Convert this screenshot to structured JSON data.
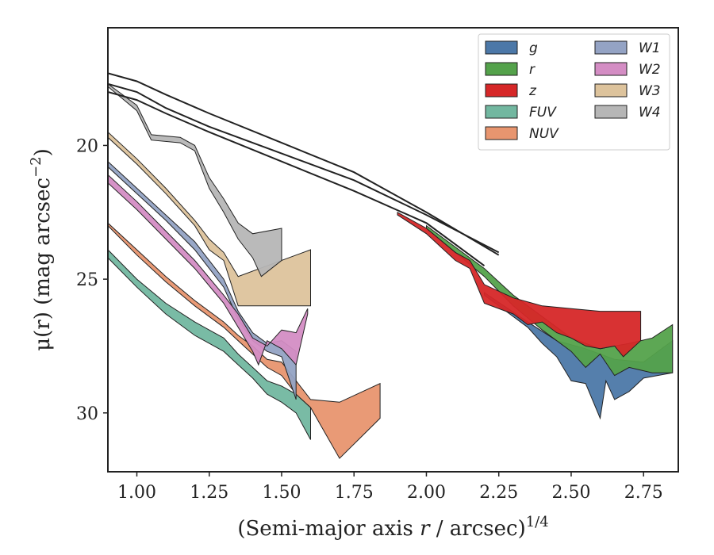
{
  "chart_data": {
    "type": "area",
    "xlabel": "(Semi-major axis r / arcsec)^{1/4}",
    "ylabel": "μ(r) (mag arcsec^{−2})",
    "xlim": [
      0.9,
      2.87
    ],
    "ylim": [
      32.2,
      15.6
    ],
    "y_inverted": true,
    "xticks": [
      "1.00",
      "1.25",
      "1.50",
      "1.75",
      "2.00",
      "2.25",
      "2.50",
      "2.75"
    ],
    "xtick_values": [
      1.0,
      1.25,
      1.5,
      1.75,
      2.0,
      2.25,
      2.5,
      2.75
    ],
    "yticks": [
      "20",
      "25",
      "30"
    ],
    "ytick_values": [
      20,
      25,
      30
    ],
    "legend_position": "top-right",
    "legend_columns": 2,
    "series": [
      {
        "name": "g",
        "color": "#4c78a8",
        "upper": [
          [
            2.2,
            25.5
          ],
          [
            2.35,
            26.6
          ],
          [
            2.45,
            27.3
          ],
          [
            2.55,
            27.6
          ],
          [
            2.65,
            28.0
          ],
          [
            2.75,
            28.1
          ],
          [
            2.85,
            27.3
          ]
        ],
        "lower": [
          [
            2.2,
            25.6
          ],
          [
            2.35,
            26.8
          ],
          [
            2.4,
            27.4
          ],
          [
            2.45,
            27.9
          ],
          [
            2.5,
            28.8
          ],
          [
            2.55,
            28.9
          ],
          [
            2.6,
            30.2
          ],
          [
            2.62,
            28.8
          ],
          [
            2.65,
            29.5
          ],
          [
            2.7,
            29.2
          ],
          [
            2.75,
            28.7
          ],
          [
            2.85,
            28.5
          ]
        ]
      },
      {
        "name": "r",
        "color": "#54a24b",
        "upper": [
          [
            2.0,
            23.0
          ],
          [
            2.1,
            23.8
          ],
          [
            2.2,
            24.6
          ],
          [
            2.3,
            25.6
          ],
          [
            2.4,
            26.4
          ],
          [
            2.5,
            27.2
          ],
          [
            2.6,
            27.6
          ],
          [
            2.7,
            27.4
          ],
          [
            2.78,
            27.2
          ],
          [
            2.85,
            26.7
          ]
        ],
        "lower": [
          [
            2.0,
            23.1
          ],
          [
            2.1,
            24.0
          ],
          [
            2.2,
            24.9
          ],
          [
            2.3,
            26.0
          ],
          [
            2.4,
            26.9
          ],
          [
            2.5,
            27.7
          ],
          [
            2.55,
            28.3
          ],
          [
            2.6,
            27.8
          ],
          [
            2.65,
            28.6
          ],
          [
            2.7,
            28.3
          ],
          [
            2.78,
            28.5
          ],
          [
            2.85,
            28.5
          ]
        ]
      },
      {
        "name": "z",
        "color": "#d62728",
        "upper": [
          [
            1.9,
            22.5
          ],
          [
            2.0,
            23.1
          ],
          [
            2.1,
            24.0
          ],
          [
            2.15,
            24.3
          ],
          [
            2.2,
            25.2
          ],
          [
            2.3,
            25.7
          ],
          [
            2.4,
            26.0
          ],
          [
            2.5,
            26.1
          ],
          [
            2.6,
            26.2
          ],
          [
            2.74,
            26.2
          ]
        ],
        "lower": [
          [
            1.9,
            22.6
          ],
          [
            2.0,
            23.3
          ],
          [
            2.1,
            24.3
          ],
          [
            2.15,
            24.6
          ],
          [
            2.2,
            25.9
          ],
          [
            2.3,
            26.3
          ],
          [
            2.35,
            26.7
          ],
          [
            2.4,
            26.6
          ],
          [
            2.45,
            27.0
          ],
          [
            2.5,
            27.2
          ],
          [
            2.55,
            27.5
          ],
          [
            2.6,
            27.6
          ],
          [
            2.65,
            27.5
          ],
          [
            2.68,
            27.9
          ],
          [
            2.74,
            27.3
          ]
        ]
      },
      {
        "name": "FUV",
        "color": "#72b7a0",
        "upper": [
          [
            0.9,
            23.9
          ],
          [
            1.0,
            25.0
          ],
          [
            1.1,
            25.9
          ],
          [
            1.2,
            26.6
          ],
          [
            1.3,
            27.2
          ],
          [
            1.35,
            27.8
          ],
          [
            1.4,
            28.3
          ],
          [
            1.45,
            28.8
          ],
          [
            1.5,
            29.0
          ],
          [
            1.55,
            29.3
          ],
          [
            1.6,
            29.8
          ]
        ],
        "lower": [
          [
            0.9,
            24.2
          ],
          [
            1.0,
            25.3
          ],
          [
            1.1,
            26.3
          ],
          [
            1.2,
            27.1
          ],
          [
            1.3,
            27.7
          ],
          [
            1.35,
            28.2
          ],
          [
            1.4,
            28.7
          ],
          [
            1.45,
            29.3
          ],
          [
            1.5,
            29.6
          ],
          [
            1.55,
            30.0
          ],
          [
            1.6,
            31.0
          ]
        ]
      },
      {
        "name": "NUV",
        "color": "#e8956f",
        "upper": [
          [
            0.9,
            22.9
          ],
          [
            1.0,
            23.9
          ],
          [
            1.1,
            24.9
          ],
          [
            1.2,
            25.8
          ],
          [
            1.3,
            26.6
          ],
          [
            1.35,
            27.1
          ],
          [
            1.4,
            27.5
          ],
          [
            1.45,
            28.0
          ],
          [
            1.5,
            28.1
          ],
          [
            1.55,
            28.8
          ],
          [
            1.6,
            29.5
          ],
          [
            1.7,
            29.6
          ],
          [
            1.84,
            28.9
          ]
        ],
        "lower": [
          [
            0.9,
            23.0
          ],
          [
            1.0,
            24.1
          ],
          [
            1.1,
            25.1
          ],
          [
            1.2,
            26.0
          ],
          [
            1.3,
            26.8
          ],
          [
            1.35,
            27.3
          ],
          [
            1.4,
            27.8
          ],
          [
            1.45,
            28.3
          ],
          [
            1.5,
            28.6
          ],
          [
            1.55,
            29.3
          ],
          [
            1.6,
            29.8
          ],
          [
            1.7,
            31.7
          ],
          [
            1.84,
            30.2
          ]
        ]
      },
      {
        "name": "W1",
        "color": "#94a3c4",
        "upper": [
          [
            0.9,
            20.6
          ],
          [
            1.0,
            21.6
          ],
          [
            1.1,
            22.6
          ],
          [
            1.2,
            23.6
          ],
          [
            1.3,
            25.0
          ],
          [
            1.35,
            26.2
          ],
          [
            1.4,
            27.0
          ],
          [
            1.45,
            27.4
          ],
          [
            1.5,
            27.3
          ],
          [
            1.55,
            27.7
          ]
        ],
        "lower": [
          [
            0.9,
            20.8
          ],
          [
            1.0,
            21.8
          ],
          [
            1.1,
            22.8
          ],
          [
            1.2,
            23.9
          ],
          [
            1.3,
            25.3
          ],
          [
            1.35,
            26.5
          ],
          [
            1.4,
            27.3
          ],
          [
            1.45,
            27.7
          ],
          [
            1.5,
            27.9
          ],
          [
            1.55,
            29.5
          ]
        ]
      },
      {
        "name": "W2",
        "color": "#d48dc4",
        "upper": [
          [
            0.9,
            21.1
          ],
          [
            1.0,
            22.1
          ],
          [
            1.1,
            23.2
          ],
          [
            1.2,
            24.3
          ],
          [
            1.3,
            25.6
          ],
          [
            1.35,
            26.3
          ],
          [
            1.4,
            27.2
          ],
          [
            1.45,
            27.5
          ],
          [
            1.5,
            26.9
          ],
          [
            1.55,
            27.0
          ],
          [
            1.59,
            26.1
          ]
        ],
        "lower": [
          [
            0.9,
            21.4
          ],
          [
            1.0,
            22.4
          ],
          [
            1.1,
            23.5
          ],
          [
            1.2,
            24.6
          ],
          [
            1.3,
            25.9
          ],
          [
            1.35,
            26.8
          ],
          [
            1.4,
            27.7
          ],
          [
            1.42,
            28.2
          ],
          [
            1.45,
            27.3
          ],
          [
            1.5,
            27.6
          ],
          [
            1.55,
            28.2
          ],
          [
            1.59,
            26.3
          ]
        ]
      },
      {
        "name": "W3",
        "color": "#ddc39c",
        "upper": [
          [
            0.9,
            19.5
          ],
          [
            1.0,
            20.5
          ],
          [
            1.1,
            21.6
          ],
          [
            1.2,
            22.8
          ],
          [
            1.25,
            23.5
          ],
          [
            1.3,
            24.0
          ],
          [
            1.35,
            24.9
          ],
          [
            1.45,
            24.5
          ],
          [
            1.6,
            23.9
          ]
        ],
        "lower": [
          [
            0.9,
            19.7
          ],
          [
            1.0,
            20.7
          ],
          [
            1.1,
            21.8
          ],
          [
            1.2,
            23.0
          ],
          [
            1.25,
            23.9
          ],
          [
            1.3,
            24.3
          ],
          [
            1.35,
            26.0
          ],
          [
            1.45,
            26.0
          ],
          [
            1.6,
            26.0
          ]
        ]
      },
      {
        "name": "W4",
        "color": "#b6b6b6",
        "upper": [
          [
            0.9,
            17.7
          ],
          [
            1.0,
            18.5
          ],
          [
            1.05,
            19.6
          ],
          [
            1.15,
            19.7
          ],
          [
            1.2,
            20.0
          ],
          [
            1.25,
            21.2
          ],
          [
            1.3,
            22.0
          ],
          [
            1.35,
            22.9
          ],
          [
            1.4,
            23.3
          ],
          [
            1.5,
            23.1
          ]
        ],
        "lower": [
          [
            0.9,
            17.8
          ],
          [
            1.0,
            18.7
          ],
          [
            1.05,
            19.8
          ],
          [
            1.15,
            19.9
          ],
          [
            1.2,
            20.2
          ],
          [
            1.25,
            21.6
          ],
          [
            1.3,
            22.5
          ],
          [
            1.35,
            23.5
          ],
          [
            1.4,
            24.2
          ],
          [
            1.43,
            24.9
          ],
          [
            1.5,
            24.3
          ]
        ]
      }
    ],
    "profile_lines": [
      {
        "color": "#222222",
        "points": [
          [
            0.9,
            17.3
          ],
          [
            1.0,
            17.6
          ],
          [
            1.1,
            18.1
          ],
          [
            1.25,
            18.8
          ],
          [
            1.5,
            19.9
          ],
          [
            1.75,
            21.0
          ],
          [
            2.0,
            22.5
          ],
          [
            2.25,
            24.1
          ]
        ]
      },
      {
        "color": "#222222",
        "points": [
          [
            0.9,
            17.7
          ],
          [
            1.0,
            18.0
          ],
          [
            1.1,
            18.6
          ],
          [
            1.25,
            19.3
          ],
          [
            1.5,
            20.3
          ],
          [
            1.75,
            21.3
          ],
          [
            2.0,
            22.6
          ],
          [
            2.25,
            24.0
          ]
        ]
      },
      {
        "color": "#222222",
        "points": [
          [
            0.9,
            18.0
          ],
          [
            1.0,
            18.3
          ],
          [
            1.1,
            18.8
          ],
          [
            1.25,
            19.5
          ],
          [
            1.5,
            20.6
          ],
          [
            1.75,
            21.7
          ],
          [
            2.0,
            22.9
          ],
          [
            2.2,
            24.5
          ]
        ]
      }
    ]
  }
}
